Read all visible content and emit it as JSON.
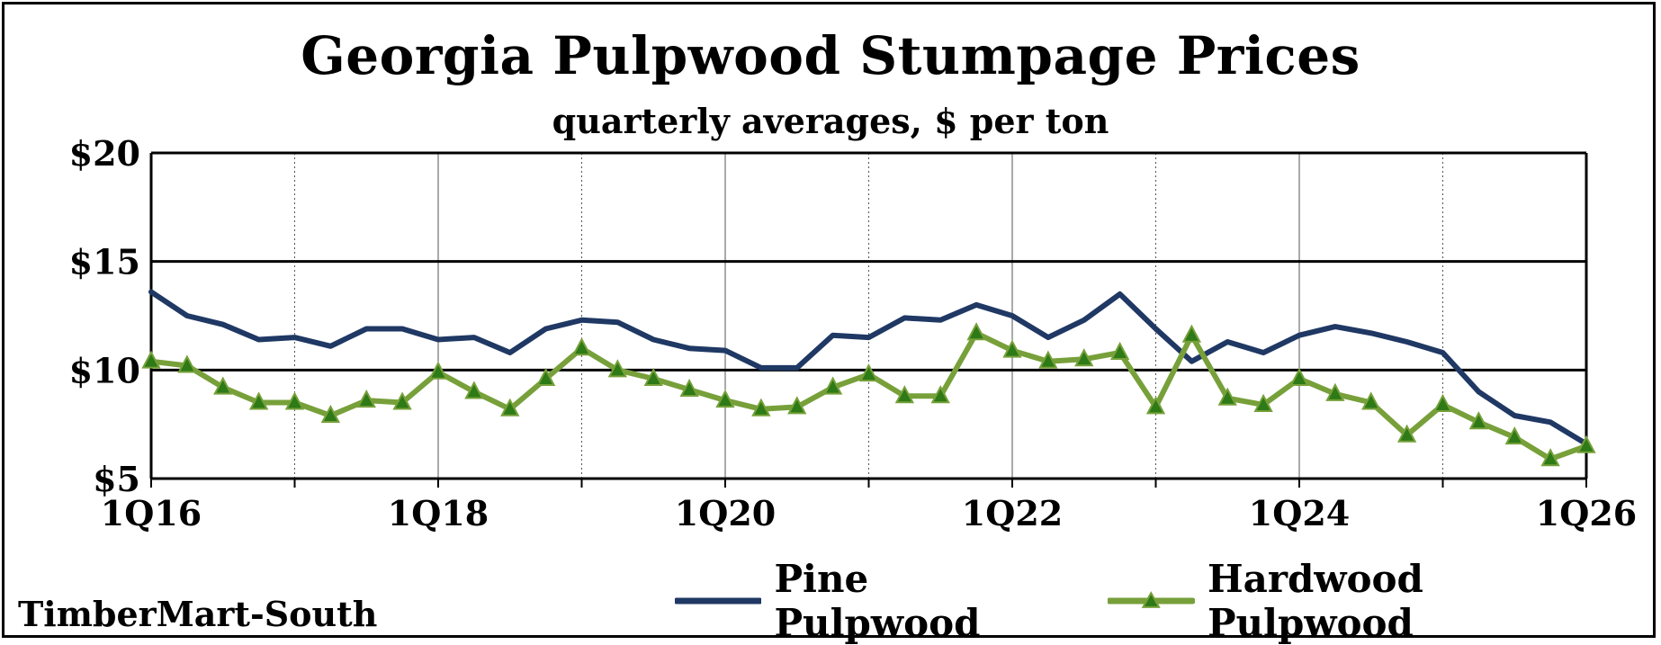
{
  "title": "Georgia Pulpwood Stumpage Prices",
  "subtitle": "quarterly averages, $ per ton",
  "source": "TimberMart-South",
  "colors": {
    "pine": "#1f3864",
    "hardwood": "#77a03a",
    "hardwood_marker": "#2d7a16",
    "grid_major": "#000000",
    "grid_minor": "#555555"
  },
  "chart_data": {
    "type": "line",
    "title": "Georgia Pulpwood Stumpage Prices",
    "subtitle": "quarterly averages, $ per ton",
    "x_tick_labels": [
      "1Q16",
      "1Q18",
      "1Q20",
      "1Q22",
      "1Q24",
      "1Q26"
    ],
    "y_tick_labels": [
      "$5",
      "$10",
      "$15",
      "$20"
    ],
    "y_ticks": [
      5,
      10,
      15,
      20
    ],
    "ylim": [
      5,
      20
    ],
    "x": [
      "1Q16",
      "2Q16",
      "3Q16",
      "4Q16",
      "1Q17",
      "2Q17",
      "3Q17",
      "4Q17",
      "1Q18",
      "2Q18",
      "3Q18",
      "4Q18",
      "1Q19",
      "2Q19",
      "3Q19",
      "4Q19",
      "1Q20",
      "2Q20",
      "3Q20",
      "4Q20",
      "1Q21",
      "2Q21",
      "3Q21",
      "4Q21",
      "1Q22",
      "2Q22",
      "3Q22",
      "4Q22",
      "1Q23",
      "2Q23",
      "3Q23",
      "4Q23",
      "1Q24",
      "2Q24",
      "3Q24",
      "4Q24",
      "1Q25",
      "2Q25",
      "3Q25",
      "4Q25",
      "1Q26"
    ],
    "legend_position": "bottom-right",
    "series": [
      {
        "name": "Pine Pulpwood",
        "marker": "none",
        "values": [
          13.6,
          12.5,
          12.1,
          11.4,
          11.5,
          11.1,
          11.9,
          11.9,
          11.4,
          11.5,
          10.8,
          11.9,
          12.3,
          12.2,
          11.4,
          11.0,
          10.9,
          10.1,
          10.1,
          11.6,
          11.5,
          12.4,
          12.3,
          13.0,
          12.5,
          11.5,
          12.3,
          13.5,
          11.9,
          10.4,
          11.3,
          10.8,
          11.6,
          12.0,
          11.7,
          11.3,
          10.8,
          9.0,
          7.9,
          7.6,
          6.6
        ]
      },
      {
        "name": "Hardwood Pulpwood",
        "marker": "triangle",
        "values": [
          10.4,
          10.2,
          9.2,
          8.5,
          8.5,
          7.9,
          8.6,
          8.5,
          9.9,
          9.0,
          8.2,
          9.6,
          11.0,
          10.0,
          9.6,
          9.1,
          8.6,
          8.2,
          8.3,
          9.2,
          9.8,
          8.8,
          8.8,
          11.7,
          10.9,
          10.4,
          10.5,
          10.8,
          8.3,
          11.6,
          8.7,
          8.4,
          9.6,
          8.9,
          8.5,
          7.0,
          8.4,
          7.6,
          6.9,
          5.9,
          6.5
        ]
      }
    ]
  }
}
